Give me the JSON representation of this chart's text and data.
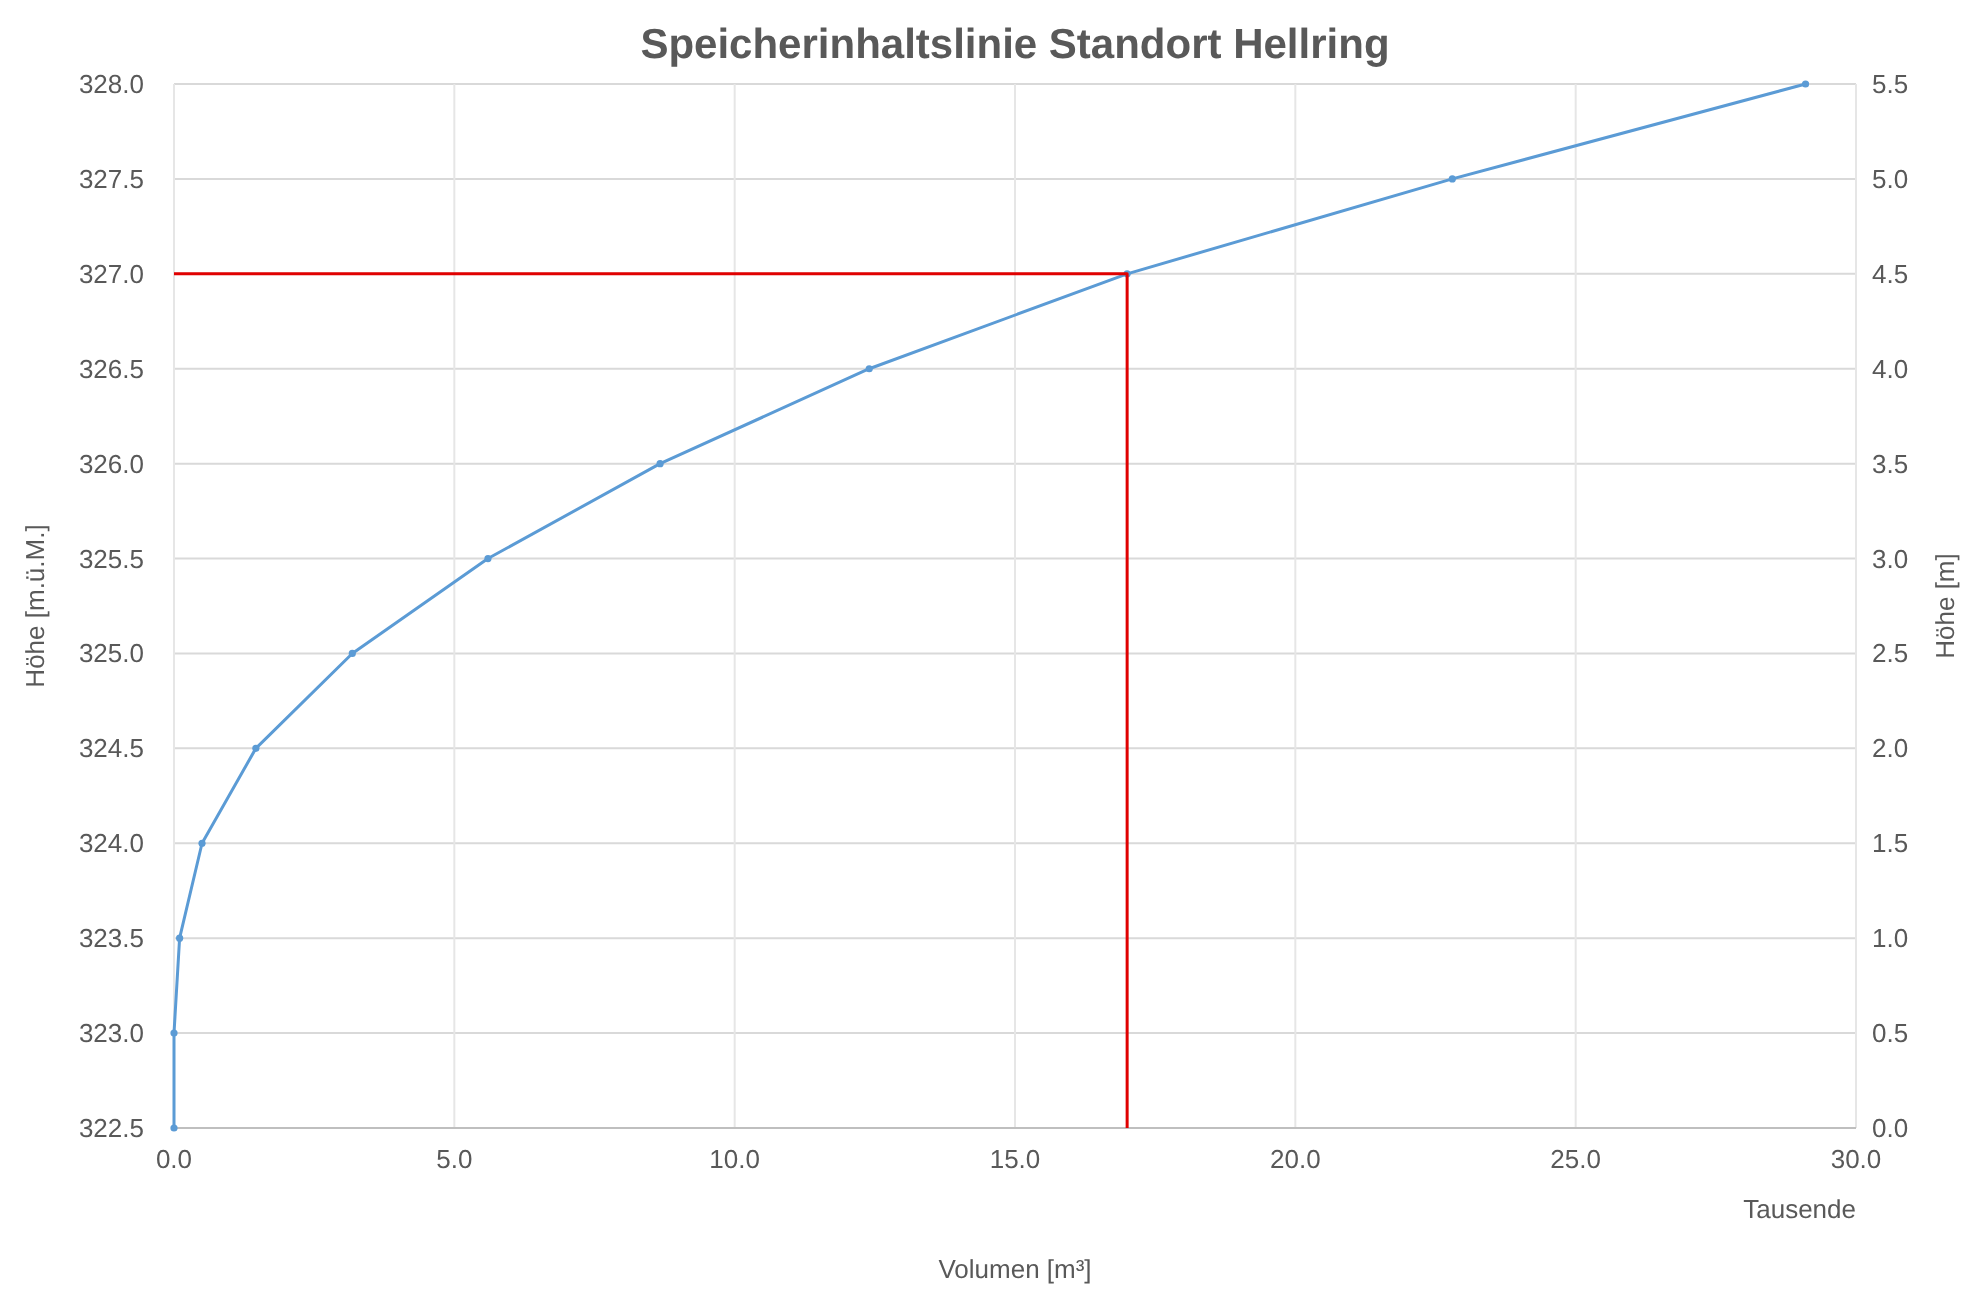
{
  "chart_data": {
    "type": "line",
    "title": "Speicherinhaltslinie Standort Hellring",
    "xlabel": "Volumen [m³]",
    "ylabel": "Höhe [m.ü.M.]",
    "y2label": "Höhe [m]",
    "annotations": [
      "Tausende"
    ],
    "series": [
      {
        "color": "#5b9bd5",
        "x": [
          0,
          0,
          0.1,
          0.5,
          1.46,
          3.18,
          5.6,
          8.67,
          12.4,
          17.0,
          22.8,
          29.1
        ],
        "values": [
          322.5,
          323.0,
          323.5,
          324.0,
          324.5,
          325.0,
          325.5,
          326.0,
          326.5,
          327.0,
          327.5,
          328.0
        ],
        "marker": "circle"
      },
      {
        "color": "#e00000",
        "x": [
          0,
          17.0,
          17.0
        ],
        "values": [
          327.0,
          327.0,
          322.5
        ],
        "marker": "none"
      }
    ],
    "xlim": [
      0,
      30
    ],
    "xticks": [
      {
        "value": 0,
        "label": "0.0"
      },
      {
        "value": 5,
        "label": "5.0"
      },
      {
        "value": 10,
        "label": "10.0"
      },
      {
        "value": 15,
        "label": "15.0"
      },
      {
        "value": 20,
        "label": "20.0"
      },
      {
        "value": 25,
        "label": "25.0"
      },
      {
        "value": 30,
        "label": "30.0"
      }
    ],
    "ylim": [
      322.5,
      328
    ],
    "yticks": [
      322.5,
      {
        "value": 323,
        "label": "323.0"
      },
      323.5,
      {
        "value": 324,
        "label": "324.0"
      },
      324.5,
      {
        "value": 325,
        "label": "325.0"
      },
      325.5,
      {
        "value": 326,
        "label": "326.0"
      },
      326.5,
      {
        "value": 327,
        "label": "327.0"
      },
      327.5,
      {
        "value": 328,
        "label": "328.0"
      }
    ],
    "y2lim": [
      0,
      5.5
    ],
    "y2ticks": [
      {
        "value": 0,
        "label": "0.0"
      },
      0.5,
      {
        "value": 1,
        "label": "1.0"
      },
      1.5,
      {
        "value": 2,
        "label": "2.0"
      },
      2.5,
      {
        "value": 3,
        "label": "3.0"
      },
      3.5,
      {
        "value": 4,
        "label": "4.0"
      },
      4.5,
      {
        "value": 5,
        "label": "5.0"
      },
      5.5
    ],
    "grid": true
  }
}
